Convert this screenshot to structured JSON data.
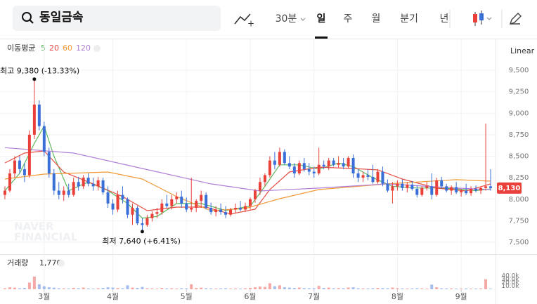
{
  "toolbar": {
    "search": "동일금속",
    "items": [
      "30분",
      "일",
      "주",
      "월",
      "분기",
      "년"
    ],
    "selected_index": 1
  },
  "chart_data": {
    "type": "candlestick",
    "legend_title": "이동평균",
    "scale_label": "Linear",
    "watermark": [
      "NAVER",
      "FINANCIAL"
    ],
    "up_color": "#e9403a",
    "down_color": "#3a6fd8",
    "xlim": [
      -1,
      100
    ],
    "xticks": [
      {
        "value": 8,
        "label": "3월"
      },
      {
        "value": 22,
        "label": "4월"
      },
      {
        "value": 37,
        "label": "5월"
      },
      {
        "value": 50,
        "label": "6월"
      },
      {
        "value": 63,
        "label": "7월"
      },
      {
        "value": 80,
        "label": "8월"
      },
      {
        "value": 93,
        "label": "9월"
      }
    ],
    "ylim": [
      7400,
      9800
    ],
    "yticks": [
      {
        "value": 7500,
        "label": "7,500"
      },
      {
        "value": 7750,
        "label": "7,750"
      },
      {
        "value": 8000,
        "label": "8,000"
      },
      {
        "value": 8250,
        "label": "8,250"
      },
      {
        "value": 8500,
        "label": "8,500"
      },
      {
        "value": 8750,
        "label": "8,750"
      },
      {
        "value": 9000,
        "label": "9,000"
      },
      {
        "value": 9250,
        "label": "9,250"
      },
      {
        "value": 9500,
        "label": "9,500"
      }
    ],
    "grid": true,
    "open": [
      8050,
      8100,
      8300,
      8450,
      8350,
      8280,
      8750,
      9100,
      8850,
      8550,
      8300,
      8100,
      8050,
      8100,
      8050,
      8200,
      8150,
      8250,
      8180,
      8150,
      8220,
      8080,
      7950,
      7880,
      8050,
      8000,
      7820,
      7900,
      7720,
      7700,
      7780,
      7830,
      7850,
      7950,
      7920,
      8000,
      8030,
      7950,
      7880,
      7900,
      7980,
      8050,
      7900,
      7850,
      7880,
      7850,
      7820,
      7880,
      7900,
      7880,
      7920,
      8000,
      8100,
      8200,
      8280,
      8450,
      8400,
      8550,
      8420,
      8380,
      8300,
      8420,
      8350,
      8320,
      8300,
      8400,
      8380,
      8450,
      8400,
      8420,
      8380,
      8480,
      8300,
      8250,
      8280,
      8260,
      8200,
      8320,
      8180,
      8100,
      8150,
      8180,
      8130,
      8170,
      8120,
      8050,
      8130,
      8150,
      8050,
      8220,
      8150,
      8100,
      8140,
      8080,
      8100,
      8070,
      8120,
      8100,
      8130,
      8150
    ],
    "high": [
      8150,
      8350,
      8500,
      8500,
      8420,
      8800,
      9380,
      9150,
      8900,
      8600,
      8350,
      8200,
      8150,
      8180,
      8250,
      8260,
      8280,
      8300,
      8250,
      8260,
      8250,
      8150,
      8000,
      8100,
      8150,
      8020,
      7950,
      7920,
      7780,
      7820,
      7860,
      7900,
      8000,
      8050,
      8050,
      8080,
      8100,
      8020,
      8250,
      8000,
      8100,
      8080,
      7960,
      7920,
      7950,
      7920,
      7900,
      7950,
      7980,
      7960,
      8020,
      8120,
      8250,
      8300,
      8500,
      8550,
      8600,
      8580,
      8500,
      8420,
      8450,
      8480,
      8420,
      8380,
      8600,
      8450,
      8480,
      8480,
      8500,
      8480,
      8500,
      8520,
      8350,
      8320,
      8350,
      8400,
      8350,
      8380,
      8230,
      8200,
      8220,
      8230,
      8200,
      8210,
      8160,
      8150,
      8200,
      8300,
      8250,
      8260,
      8180,
      8160,
      8200,
      8120,
      8180,
      8150,
      8160,
      8150,
      8880,
      8350
    ],
    "low": [
      8000,
      8080,
      8250,
      8300,
      8200,
      8250,
      8700,
      8800,
      8500,
      8250,
      8050,
      8000,
      7980,
      8020,
      8030,
      8100,
      8120,
      8150,
      8100,
      8100,
      8050,
      7900,
      7820,
      7850,
      7950,
      7780,
      7700,
      7700,
      7640,
      7680,
      7740,
      7780,
      7820,
      7900,
      7880,
      7950,
      7900,
      7850,
      7850,
      7850,
      7900,
      7880,
      7820,
      7800,
      7820,
      7780,
      7800,
      7840,
      7860,
      7850,
      7880,
      7960,
      8050,
      8150,
      8250,
      8350,
      8380,
      8400,
      8350,
      8250,
      8280,
      8320,
      8280,
      8250,
      8280,
      8350,
      8340,
      8380,
      8370,
      8350,
      8360,
      8250,
      8200,
      8200,
      8220,
      8180,
      8180,
      8150,
      8080,
      7950,
      8100,
      8100,
      8080,
      8100,
      8020,
      8030,
      8100,
      8000,
      8030,
      8120,
      8080,
      8050,
      8060,
      8030,
      8050,
      8040,
      8080,
      8060,
      8100,
      8100
    ],
    "close": [
      8100,
      8300,
      8450,
      8350,
      8280,
      8750,
      9100,
      8850,
      8550,
      8300,
      8100,
      8050,
      8100,
      8050,
      8200,
      8150,
      8250,
      8180,
      8150,
      8220,
      8080,
      7950,
      7880,
      8050,
      8000,
      7820,
      7900,
      7720,
      7700,
      7780,
      7830,
      7850,
      7950,
      7920,
      8000,
      8030,
      7950,
      7880,
      7900,
      7980,
      8050,
      7900,
      7850,
      7880,
      7850,
      7820,
      7880,
      7900,
      7880,
      7920,
      8000,
      8100,
      8200,
      8280,
      8450,
      8400,
      8550,
      8420,
      8380,
      8300,
      8420,
      8350,
      8320,
      8300,
      8400,
      8380,
      8450,
      8400,
      8420,
      8380,
      8480,
      8300,
      8250,
      8280,
      8260,
      8200,
      8320,
      8180,
      8100,
      8150,
      8180,
      8130,
      8170,
      8120,
      8050,
      8130,
      8150,
      8050,
      8220,
      8150,
      8100,
      8140,
      8080,
      8100,
      8070,
      8120,
      8100,
      8130,
      8150,
      8130
    ],
    "series": [
      {
        "name": "5",
        "color": "#5cb85c",
        "x": [
          0,
          3,
          6,
          8,
          10,
          13,
          17,
          21,
          25,
          28,
          31,
          35,
          40,
          45,
          50,
          53,
          56,
          60,
          64,
          68,
          71,
          75,
          79,
          84,
          88,
          92,
          96,
          99
        ],
        "values": [
          8100,
          8300,
          8650,
          8850,
          8500,
          8100,
          8200,
          8100,
          7950,
          7780,
          7800,
          7950,
          7950,
          7870,
          7920,
          8150,
          8400,
          8400,
          8350,
          8420,
          8380,
          8250,
          8150,
          8130,
          8130,
          8120,
          8100,
          8120
        ]
      },
      {
        "name": "20",
        "color": "#e54d42",
        "x": [
          0,
          4,
          8,
          12,
          18,
          24,
          29,
          35,
          41,
          46,
          51,
          54,
          58,
          64,
          71,
          76,
          81,
          88,
          94,
          99
        ],
        "values": [
          8422,
          8537,
          8561,
          8316,
          8178,
          8031,
          7867,
          7908,
          7908,
          7827,
          7884,
          8112,
          8316,
          8373,
          8357,
          8341,
          8235,
          8129,
          8096,
          8178
        ]
      },
      {
        "name": "60",
        "color": "#f29b38",
        "x": [
          0,
          8,
          21,
          28,
          35,
          42,
          49,
          56,
          64,
          78,
          92,
          99
        ],
        "values": [
          8235,
          8292,
          8316,
          8235,
          8031,
          7867,
          7892,
          8006,
          8112,
          8178,
          8227,
          8210
        ]
      },
      {
        "name": "120",
        "color": "#b07fd6",
        "x": [
          0,
          14,
          28,
          42,
          52,
          64,
          78,
          92,
          99
        ],
        "values": [
          8600,
          8537,
          8357,
          8178,
          8096,
          8129,
          8178,
          8129,
          8112
        ]
      }
    ],
    "last_price": {
      "value": 8130,
      "label": "8,130"
    },
    "annotations": [
      {
        "text": "최고 9,380 (-13.33%)",
        "index": 6
      },
      {
        "text": "최저 7,640 (+6.41%)",
        "index": 28
      }
    ],
    "volume": {
      "label": "거래량",
      "last_label": "1,770",
      "ylim": [
        0,
        40000
      ],
      "ticks": [
        {
          "value": 10000,
          "label": "10.0k"
        },
        {
          "value": 20000,
          "label": "20.0k"
        },
        {
          "value": 30000,
          "label": "30.0k"
        },
        {
          "value": 40000,
          "label": "40.0k"
        }
      ],
      "values": [
        3000,
        6000,
        5000,
        3000,
        4000,
        20000,
        38000,
        15000,
        9000,
        6000,
        5000,
        3000,
        2500,
        2000,
        4000,
        3000,
        5000,
        2500,
        2000,
        3000,
        4000,
        6000,
        5000,
        3500,
        3000,
        12000,
        5000,
        4000,
        7000,
        3000,
        2500,
        2000,
        4000,
        2500,
        3000,
        2000,
        3000,
        2500,
        15000,
        4000,
        5000,
        3000,
        2500,
        2000,
        2500,
        3000,
        2000,
        2500,
        2000,
        3000,
        4000,
        6000,
        8000,
        7000,
        18000,
        9000,
        12000,
        6000,
        5000,
        4000,
        5000,
        3500,
        3000,
        3000,
        10000,
        4000,
        5000,
        3000,
        3500,
        3000,
        5000,
        6000,
        3000,
        2500,
        2500,
        3000,
        4000,
        3500,
        3000,
        5000,
        3000,
        2500,
        2000,
        2500,
        3000,
        2500,
        2000,
        14000,
        6000,
        3000,
        2500,
        2500,
        2000,
        2000,
        2500,
        2000,
        2000,
        2500,
        30000,
        1770
      ]
    }
  }
}
